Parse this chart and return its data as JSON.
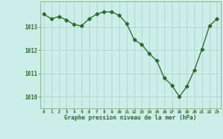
{
  "x": [
    0,
    1,
    2,
    3,
    4,
    5,
    6,
    7,
    8,
    9,
    10,
    11,
    12,
    13,
    14,
    15,
    16,
    17,
    18,
    19,
    20,
    21,
    22,
    23
  ],
  "y": [
    1013.55,
    1013.35,
    1013.45,
    1013.3,
    1013.1,
    1013.05,
    1013.35,
    1013.55,
    1013.65,
    1013.65,
    1013.5,
    1013.15,
    1012.45,
    1012.25,
    1011.85,
    1011.55,
    1010.8,
    1010.5,
    1010.0,
    1010.45,
    1011.15,
    1012.05,
    1013.05,
    1013.35
  ],
  "line_color": "#2d6a2d",
  "marker": "D",
  "markersize": 2.5,
  "linewidth": 1.0,
  "bg_color": "#cceee8",
  "grid_color": "#b0d8d0",
  "xlabel": "Graphe pression niveau de la mer (hPa)",
  "xlabel_color": "#2d6a2d",
  "tick_color": "#2d6a2d",
  "axis_color": "#7aaa7a",
  "ylabel_ticks": [
    1010,
    1011,
    1012,
    1013
  ],
  "xtick_labels": [
    "0",
    "1",
    "2",
    "3",
    "4",
    "5",
    "6",
    "7",
    "8",
    "9",
    "10",
    "11",
    "12",
    "13",
    "14",
    "15",
    "16",
    "17",
    "18",
    "19",
    "20",
    "21",
    "22",
    "23"
  ],
  "ylim": [
    1009.5,
    1014.1
  ],
  "xlim": [
    -0.5,
    23.5
  ]
}
